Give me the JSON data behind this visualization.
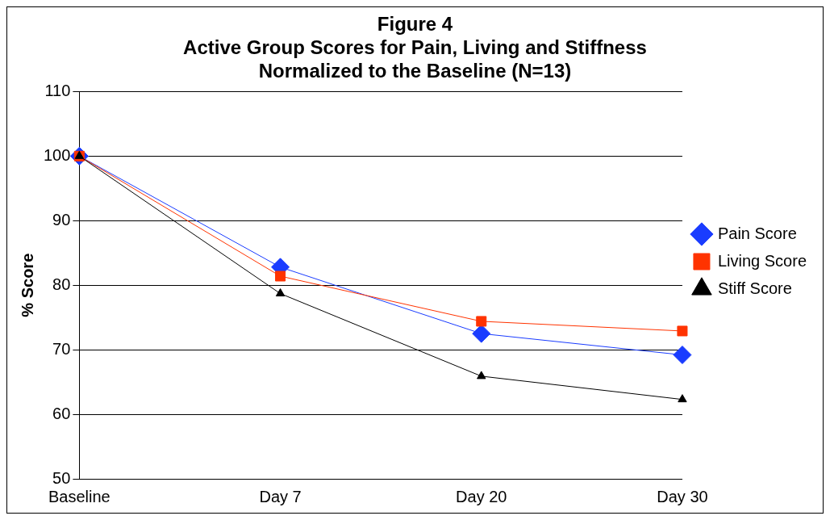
{
  "chart_data": {
    "type": "line",
    "title": "Figure 4\nActive Group Scores for Pain, Living and Stiffness\nNormalized to the Baseline (N=13)",
    "ylabel": "% Score",
    "categories": [
      "Baseline",
      "Day 7",
      "Day 20",
      "Day 30"
    ],
    "series": [
      {
        "name": "Pain Score",
        "color": "#1a3cff",
        "marker": "diamond",
        "values": [
          100,
          82.8,
          72.5,
          69.2
        ]
      },
      {
        "name": "Living Score",
        "color": "#ff3300",
        "marker": "square",
        "values": [
          100,
          81.4,
          74.4,
          72.9
        ]
      },
      {
        "name": "Stiff Score",
        "color": "#000000",
        "marker": "triangle",
        "values": [
          100,
          78.7,
          65.9,
          62.3
        ]
      }
    ],
    "ylim": [
      50,
      110
    ],
    "yticks": [
      50,
      60,
      70,
      80,
      90,
      100,
      110
    ],
    "grid": "y",
    "legend": "right",
    "line_style": "solid"
  }
}
